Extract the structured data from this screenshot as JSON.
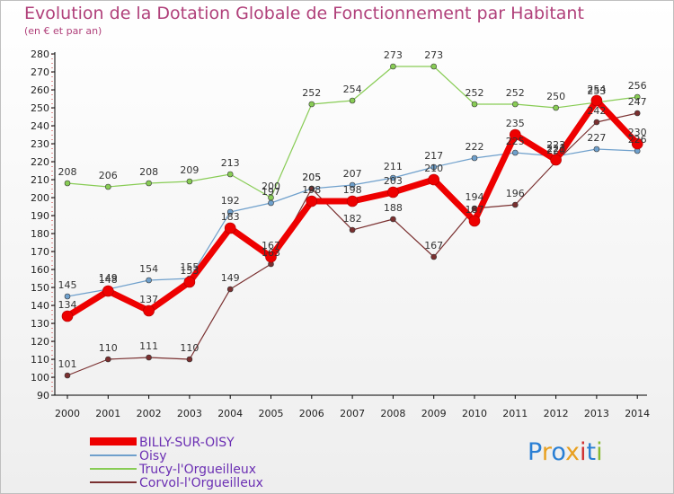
{
  "chart_data": {
    "type": "line",
    "title": "Evolution de la Dotation Globale de Fonctionnement par Habitant",
    "subtitle": "(en € et par an)",
    "x": [
      "2000",
      "2001",
      "2002",
      "2003",
      "2004",
      "2005",
      "2006",
      "2007",
      "2008",
      "2009",
      "2010",
      "2011",
      "2012",
      "2013",
      "2014"
    ],
    "ylim": [
      90,
      280
    ],
    "yticks": [
      "90",
      "100",
      "110",
      "120",
      "130",
      "140",
      "150",
      "160",
      "170",
      "180",
      "190",
      "200",
      "210",
      "220",
      "230",
      "240",
      "250",
      "260",
      "270",
      "280"
    ],
    "series": [
      {
        "name": "Trucy-l'Orgueilleux",
        "color": "#88cc55",
        "width": 1.2,
        "values": [
          208,
          206,
          208,
          209,
          213,
          200,
          252,
          254,
          273,
          273,
          252,
          252,
          250,
          253,
          256
        ],
        "labels": [
          "208",
          "206",
          "208",
          "209",
          "213",
          "200",
          "252",
          "254",
          "273",
          "273",
          "252",
          "252",
          "250",
          "253",
          "256"
        ]
      },
      {
        "name": "Oisy",
        "color": "#6fa0cc",
        "width": 1.2,
        "values": [
          145,
          149,
          154,
          155,
          192,
          197,
          205,
          207,
          211,
          217,
          222,
          225,
          223,
          227,
          226
        ],
        "labels": [
          "145",
          "149",
          "154",
          "155",
          "192",
          "197",
          "205",
          "207",
          "211",
          "217",
          "222",
          "225",
          "223",
          "227",
          "226"
        ]
      },
      {
        "name": "Corvol-l'Orgueilleux",
        "color": "#7a3030",
        "width": 1.2,
        "values": [
          101,
          110,
          111,
          110,
          149,
          163,
          205,
          182,
          188,
          167,
          194,
          196,
          220,
          242,
          247
        ],
        "labels": [
          "101",
          "110",
          "111",
          "110",
          "149",
          "163",
          "205",
          "182",
          "188",
          "167",
          "194",
          "196",
          "220",
          "242",
          "247"
        ]
      },
      {
        "name": "BILLY-SUR-OISY",
        "color": "#ee0000",
        "width": 7,
        "values": [
          134,
          148,
          137,
          153,
          183,
          167,
          198,
          198,
          203,
          210,
          187,
          235,
          221,
          254,
          230
        ],
        "labels": [
          "134",
          "148",
          "137",
          "153",
          "183",
          "167",
          "198",
          "198",
          "203",
          "210",
          "187",
          "235",
          "221",
          "254",
          "230"
        ]
      }
    ],
    "legend": [
      {
        "name": "BILLY-SUR-OISY",
        "color": "#ee0000",
        "text_color": "#6b2fb3",
        "thick": true
      },
      {
        "name": "Oisy",
        "color": "#6fa0cc",
        "text_color": "#6b2fb3",
        "thick": false
      },
      {
        "name": "Trucy-l'Orgueilleux",
        "color": "#88cc55",
        "text_color": "#6b2fb3",
        "thick": false
      },
      {
        "name": "Corvol-l'Orgueilleux",
        "color": "#7a3030",
        "text_color": "#6b2fb3",
        "thick": false
      }
    ],
    "grid": false,
    "legend_position": "bottom-left"
  },
  "logo": {
    "letters": [
      "P",
      "r",
      "o",
      "x",
      "i",
      "t",
      "i"
    ],
    "colors": [
      "#2a7fd4",
      "#e8a020",
      "#2a7fd4",
      "#e8a020",
      "#d03030",
      "#2a7fd4",
      "#88bb33"
    ]
  }
}
